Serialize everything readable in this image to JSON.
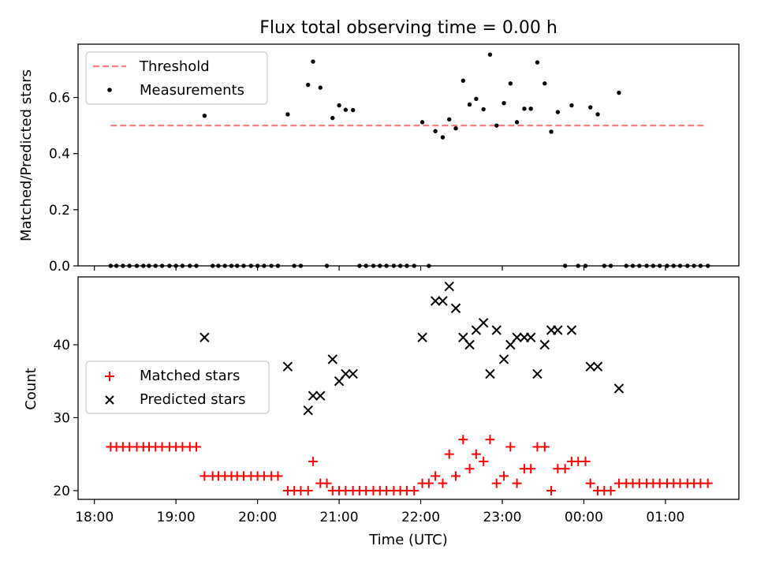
{
  "chart_data": [
    {
      "type": "scatter",
      "title": "Flux total observing time = 0.00 h",
      "xlabel": "",
      "ylabel": "Matched/Predicted stars",
      "xlim": [
        17.8,
        25.9
      ],
      "ylim": [
        0,
        0.79
      ],
      "yticks": [
        0.0,
        0.2,
        0.4,
        0.6
      ],
      "ytick_labels": [
        "0.0",
        "0.2",
        "0.4",
        "0.6"
      ],
      "legend_position": "top-left",
      "legend": [
        {
          "label": "Threshold",
          "kind": "dashed-line",
          "color": "#ff7f7f"
        },
        {
          "label": "Measurements",
          "kind": "dot",
          "color": "#000000"
        }
      ],
      "threshold": {
        "name": "Threshold",
        "value": 0.5,
        "x_start": 18.2,
        "x_end": 25.5,
        "color": "#ff7f7f"
      },
      "measurements": {
        "name": "Measurements",
        "color": "#000000",
        "points": [
          [
            18.2,
            0
          ],
          [
            18.27,
            0
          ],
          [
            18.35,
            0
          ],
          [
            18.43,
            0
          ],
          [
            18.52,
            0
          ],
          [
            18.6,
            0
          ],
          [
            18.67,
            0
          ],
          [
            18.75,
            0
          ],
          [
            18.83,
            0
          ],
          [
            18.92,
            0
          ],
          [
            19.0,
            0
          ],
          [
            19.08,
            0
          ],
          [
            19.17,
            0
          ],
          [
            19.25,
            0
          ],
          [
            19.35,
            0.535
          ],
          [
            19.45,
            0
          ],
          [
            19.52,
            0
          ],
          [
            19.6,
            0
          ],
          [
            19.68,
            0
          ],
          [
            19.75,
            0
          ],
          [
            19.83,
            0
          ],
          [
            19.92,
            0
          ],
          [
            20.0,
            0
          ],
          [
            20.08,
            0
          ],
          [
            20.17,
            0
          ],
          [
            20.25,
            0
          ],
          [
            20.37,
            0.54
          ],
          [
            20.45,
            0
          ],
          [
            20.53,
            0
          ],
          [
            20.62,
            0.645
          ],
          [
            20.68,
            0.728
          ],
          [
            20.77,
            0.635
          ],
          [
            20.85,
            0
          ],
          [
            20.92,
            0.527
          ],
          [
            21.0,
            0.572
          ],
          [
            21.08,
            0.556
          ],
          [
            21.17,
            0.555
          ],
          [
            21.25,
            0
          ],
          [
            21.33,
            0
          ],
          [
            21.42,
            0
          ],
          [
            21.5,
            0
          ],
          [
            21.58,
            0
          ],
          [
            21.67,
            0
          ],
          [
            21.75,
            0
          ],
          [
            21.83,
            0
          ],
          [
            21.92,
            0
          ],
          [
            22.02,
            0.512
          ],
          [
            22.1,
            0
          ],
          [
            22.18,
            0.48
          ],
          [
            22.27,
            0.458
          ],
          [
            22.35,
            0.522
          ],
          [
            22.43,
            0.49
          ],
          [
            22.52,
            0.66
          ],
          [
            22.6,
            0.575
          ],
          [
            22.68,
            0.595
          ],
          [
            22.77,
            0.558
          ],
          [
            22.85,
            0.753
          ],
          [
            22.93,
            0.5
          ],
          [
            23.02,
            0.58
          ],
          [
            23.1,
            0.65
          ],
          [
            23.18,
            0.512
          ],
          [
            23.27,
            0.56
          ],
          [
            23.35,
            0.56
          ],
          [
            23.43,
            0.725
          ],
          [
            23.52,
            0.65
          ],
          [
            23.6,
            0.478
          ],
          [
            23.68,
            0.548
          ],
          [
            23.77,
            0
          ],
          [
            23.85,
            0.572
          ],
          [
            23.93,
            0
          ],
          [
            24.02,
            0
          ],
          [
            24.08,
            0.565
          ],
          [
            24.17,
            0.54
          ],
          [
            24.25,
            0
          ],
          [
            24.33,
            0
          ],
          [
            24.43,
            0.617
          ],
          [
            24.52,
            0
          ],
          [
            24.6,
            0
          ],
          [
            24.68,
            0
          ],
          [
            24.77,
            0
          ],
          [
            24.85,
            0
          ],
          [
            24.93,
            0
          ],
          [
            25.02,
            0
          ],
          [
            25.1,
            0
          ],
          [
            25.18,
            0
          ],
          [
            25.27,
            0
          ],
          [
            25.35,
            0
          ],
          [
            25.43,
            0
          ],
          [
            25.52,
            0
          ]
        ]
      }
    },
    {
      "type": "scatter",
      "title": "",
      "xlabel": "Time (UTC)",
      "ylabel": "Count",
      "xlim": [
        17.8,
        25.9
      ],
      "ylim": [
        18.8,
        49.3
      ],
      "yticks": [
        20,
        30,
        40
      ],
      "ytick_labels": [
        "20",
        "30",
        "40"
      ],
      "xticks": [
        18,
        19,
        20,
        21,
        22,
        23,
        24,
        25
      ],
      "xtick_labels": [
        "18:00",
        "19:00",
        "20:00",
        "21:00",
        "22:00",
        "23:00",
        "00:00",
        "01:00"
      ],
      "legend_position": "center-left",
      "legend": [
        {
          "label": "Matched stars",
          "kind": "plus",
          "color": "#ff0000"
        },
        {
          "label": "Predicted stars",
          "kind": "x",
          "color": "#000000"
        }
      ],
      "series": [
        {
          "name": "Matched stars",
          "marker": "plus",
          "color": "#ff0000",
          "points": [
            [
              18.2,
              26
            ],
            [
              18.27,
              26
            ],
            [
              18.35,
              26
            ],
            [
              18.43,
              26
            ],
            [
              18.52,
              26
            ],
            [
              18.6,
              26
            ],
            [
              18.67,
              26
            ],
            [
              18.75,
              26
            ],
            [
              18.83,
              26
            ],
            [
              18.92,
              26
            ],
            [
              19.0,
              26
            ],
            [
              19.08,
              26
            ],
            [
              19.17,
              26
            ],
            [
              19.25,
              26
            ],
            [
              19.35,
              22
            ],
            [
              19.45,
              22
            ],
            [
              19.52,
              22
            ],
            [
              19.6,
              22
            ],
            [
              19.68,
              22
            ],
            [
              19.75,
              22
            ],
            [
              19.83,
              22
            ],
            [
              19.92,
              22
            ],
            [
              20.0,
              22
            ],
            [
              20.08,
              22
            ],
            [
              20.17,
              22
            ],
            [
              20.25,
              22
            ],
            [
              20.37,
              20
            ],
            [
              20.45,
              20
            ],
            [
              20.53,
              20
            ],
            [
              20.62,
              20
            ],
            [
              20.68,
              24
            ],
            [
              20.77,
              21
            ],
            [
              20.85,
              21
            ],
            [
              20.92,
              20
            ],
            [
              21.0,
              20
            ],
            [
              21.08,
              20
            ],
            [
              21.17,
              20
            ],
            [
              21.25,
              20
            ],
            [
              21.33,
              20
            ],
            [
              21.42,
              20
            ],
            [
              21.5,
              20
            ],
            [
              21.58,
              20
            ],
            [
              21.67,
              20
            ],
            [
              21.75,
              20
            ],
            [
              21.83,
              20
            ],
            [
              21.92,
              20
            ],
            [
              22.02,
              21
            ],
            [
              22.1,
              21
            ],
            [
              22.18,
              22
            ],
            [
              22.27,
              21
            ],
            [
              22.35,
              25
            ],
            [
              22.43,
              22
            ],
            [
              22.52,
              27
            ],
            [
              22.6,
              23
            ],
            [
              22.68,
              25
            ],
            [
              22.77,
              24
            ],
            [
              22.85,
              27
            ],
            [
              22.93,
              21
            ],
            [
              23.02,
              22
            ],
            [
              23.1,
              26
            ],
            [
              23.18,
              21
            ],
            [
              23.27,
              23
            ],
            [
              23.35,
              23
            ],
            [
              23.43,
              26
            ],
            [
              23.52,
              26
            ],
            [
              23.6,
              20
            ],
            [
              23.68,
              23
            ],
            [
              23.77,
              23
            ],
            [
              23.85,
              24
            ],
            [
              23.93,
              24
            ],
            [
              24.02,
              24
            ],
            [
              24.08,
              21
            ],
            [
              24.17,
              20
            ],
            [
              24.25,
              20
            ],
            [
              24.33,
              20
            ],
            [
              24.43,
              21
            ],
            [
              24.52,
              21
            ],
            [
              24.6,
              21
            ],
            [
              24.68,
              21
            ],
            [
              24.77,
              21
            ],
            [
              24.85,
              21
            ],
            [
              24.93,
              21
            ],
            [
              25.02,
              21
            ],
            [
              25.1,
              21
            ],
            [
              25.18,
              21
            ],
            [
              25.27,
              21
            ],
            [
              25.35,
              21
            ],
            [
              25.43,
              21
            ],
            [
              25.52,
              21
            ]
          ]
        },
        {
          "name": "Predicted stars",
          "marker": "x",
          "color": "#000000",
          "points": [
            [
              19.35,
              41
            ],
            [
              20.37,
              37
            ],
            [
              20.62,
              31
            ],
            [
              20.68,
              33
            ],
            [
              20.77,
              33
            ],
            [
              20.92,
              38
            ],
            [
              21.0,
              35
            ],
            [
              21.08,
              36
            ],
            [
              21.17,
              36
            ],
            [
              22.02,
              41
            ],
            [
              22.18,
              46
            ],
            [
              22.27,
              46
            ],
            [
              22.35,
              48
            ],
            [
              22.43,
              45
            ],
            [
              22.52,
              41
            ],
            [
              22.6,
              40
            ],
            [
              22.68,
              42
            ],
            [
              22.77,
              43
            ],
            [
              22.85,
              36
            ],
            [
              22.93,
              42
            ],
            [
              23.02,
              38
            ],
            [
              23.1,
              40
            ],
            [
              23.18,
              41
            ],
            [
              23.27,
              41
            ],
            [
              23.35,
              41
            ],
            [
              23.43,
              36
            ],
            [
              23.52,
              40
            ],
            [
              23.6,
              42
            ],
            [
              23.68,
              42
            ],
            [
              23.85,
              42
            ],
            [
              24.08,
              37
            ],
            [
              24.17,
              37
            ],
            [
              24.43,
              34
            ]
          ]
        }
      ]
    }
  ]
}
